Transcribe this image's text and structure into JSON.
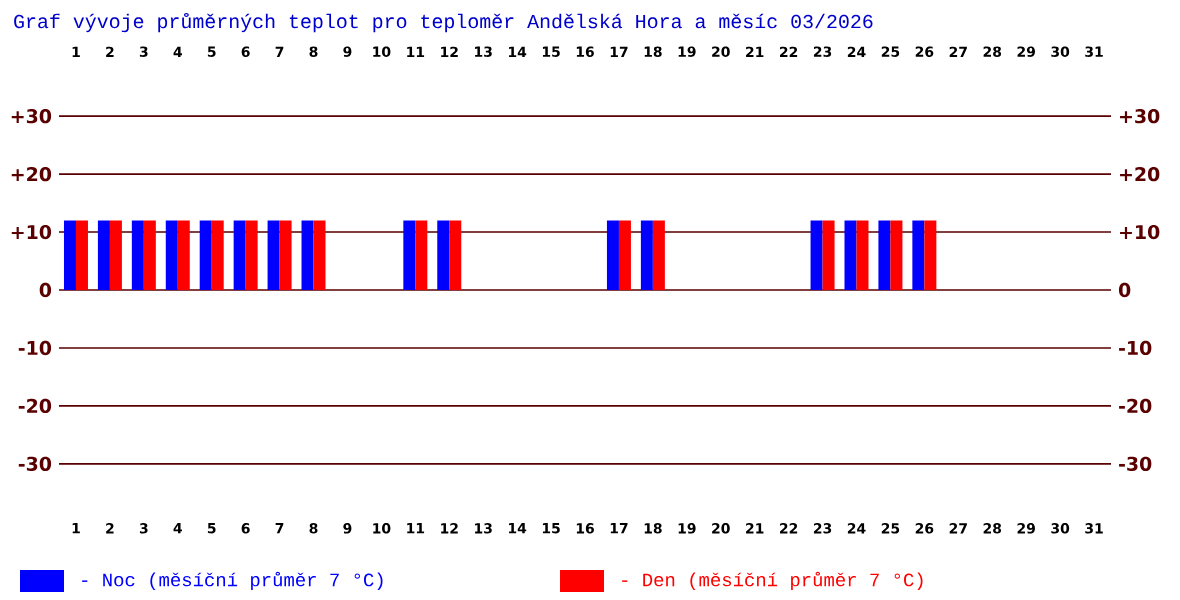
{
  "chart_data": {
    "type": "bar",
    "title": "Graf vývoje průměrných teplot pro teploměr Andělská Hora a měsíc 03/2026",
    "categories": [
      "1",
      "2",
      "3",
      "4",
      "5",
      "6",
      "7",
      "8",
      "9",
      "10",
      "11",
      "12",
      "13",
      "14",
      "15",
      "16",
      "17",
      "18",
      "19",
      "20",
      "21",
      "22",
      "23",
      "24",
      "25",
      "26",
      "27",
      "28",
      "29",
      "30",
      "31"
    ],
    "series": [
      {
        "name": "- Noc (měsíční průměr 7 °C)",
        "color": "#0000ff",
        "values": [
          12,
          12,
          12,
          12,
          12,
          12,
          12,
          12,
          null,
          null,
          12,
          12,
          null,
          null,
          null,
          null,
          12,
          12,
          null,
          null,
          null,
          null,
          12,
          12,
          12,
          12,
          null,
          null,
          null,
          null,
          null
        ]
      },
      {
        "name": "- Den (měsíční průměr 7 °C)",
        "color": "#ff0000",
        "values": [
          12,
          12,
          12,
          12,
          12,
          12,
          12,
          12,
          null,
          null,
          12,
          12,
          null,
          null,
          null,
          null,
          12,
          12,
          null,
          null,
          null,
          null,
          12,
          12,
          12,
          12,
          null,
          null,
          null,
          null,
          null
        ]
      }
    ],
    "yticks": [
      {
        "value": 30,
        "label": "+30"
      },
      {
        "value": 20,
        "label": "+20"
      },
      {
        "value": 10,
        "label": "+10"
      },
      0,
      -10,
      -20,
      -30
    ],
    "ylim": [
      -30,
      30
    ],
    "y2lim": [
      -30,
      30
    ],
    "y2ticks": [
      {
        "value": 30,
        "label": "+30"
      },
      {
        "value": 20,
        "label": "+20"
      },
      {
        "value": 10,
        "label": "+10"
      },
      0,
      -10,
      -20,
      -30
    ],
    "grid": "y",
    "legend": "bottom"
  }
}
